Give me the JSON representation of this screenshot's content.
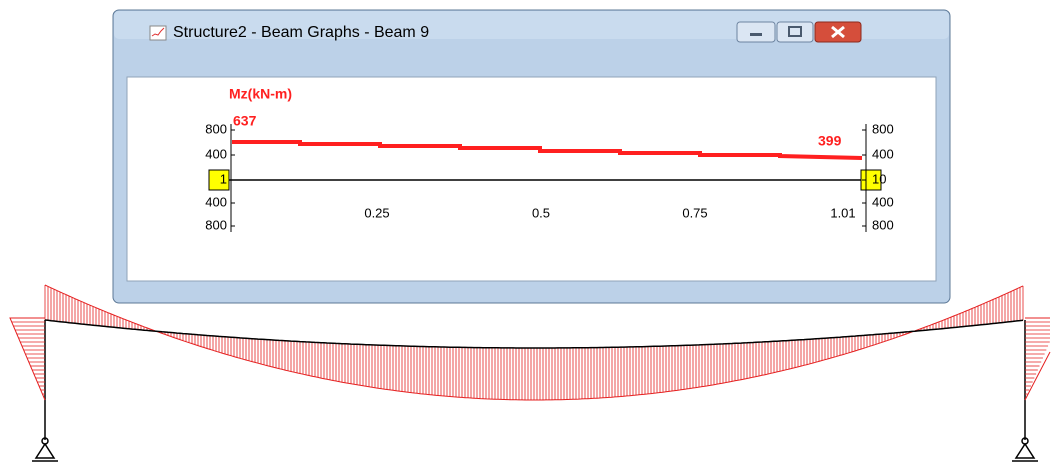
{
  "window": {
    "title": "Structure2 - Beam Graphs - Beam 9"
  },
  "graph": {
    "quantity": "Mz(kN-m)",
    "start_value": "637",
    "end_value": "399",
    "left_axis": [
      "800",
      "400",
      "1",
      "400",
      "800"
    ],
    "right_axis": [
      "800",
      "400",
      "10",
      "400",
      "800"
    ],
    "x_axis": [
      "0.25",
      "0.5",
      "0.75",
      "1.01"
    ]
  }
}
